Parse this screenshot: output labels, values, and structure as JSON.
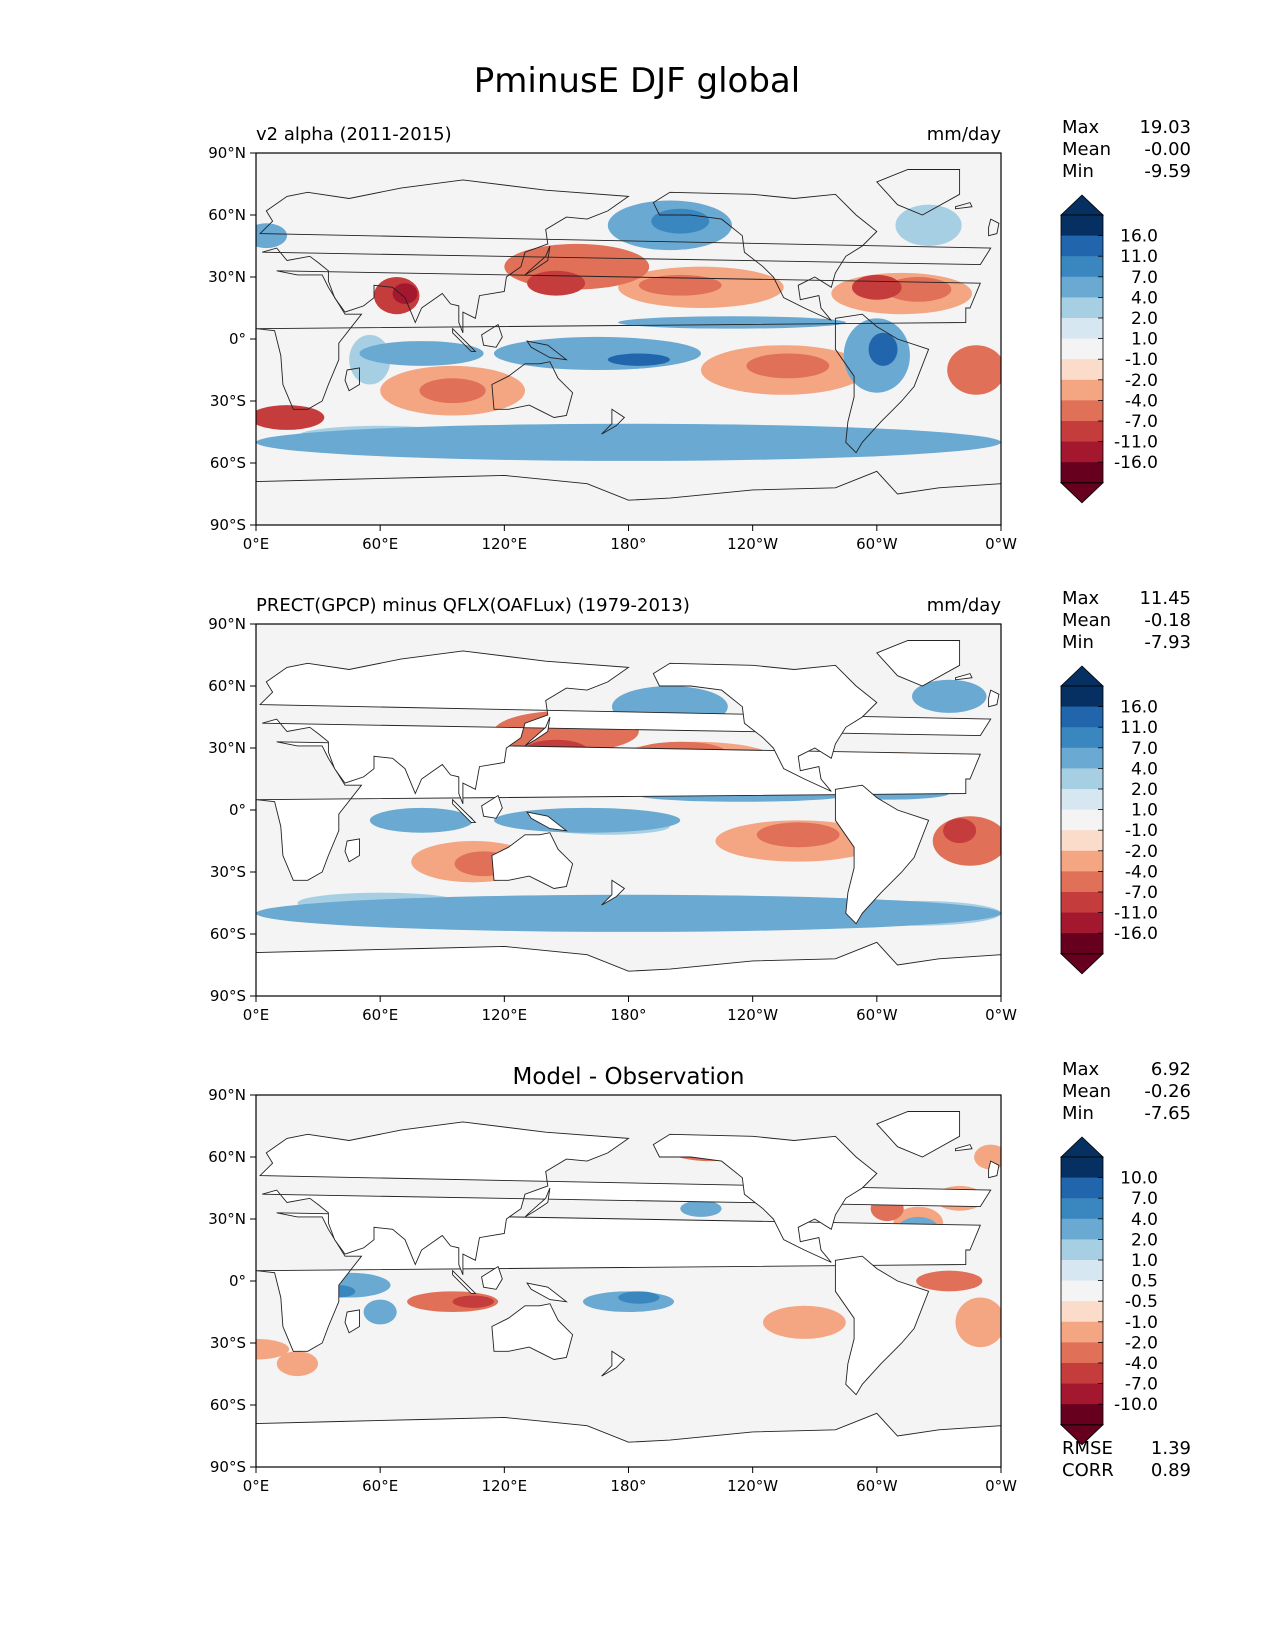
{
  "figure": {
    "title": "PminusE DJF global"
  },
  "longitude_ticks": [
    "0°E",
    "60°E",
    "120°E",
    "180°",
    "120°W",
    "60°W",
    "0°W"
  ],
  "latitude_ticks": [
    "90°N",
    "60°N",
    "30°N",
    "0°",
    "30°S",
    "60°S",
    "90°S"
  ],
  "panels": [
    {
      "left_title": "v2 alpha (2011-2015)",
      "center_title": "",
      "units": "mm/day",
      "stats": [
        {
          "label": "Max",
          "value": "19.03"
        },
        {
          "label": "Mean",
          "value": "-0.00"
        },
        {
          "label": "Min",
          "value": "-9.59"
        }
      ],
      "colorbar_levels": [
        "16.0",
        "11.0",
        "7.0",
        "4.0",
        "2.0",
        "1.0",
        "-1.0",
        "-2.0",
        "-4.0",
        "-7.0",
        "-11.0",
        "-16.0"
      ],
      "footer_stats": []
    },
    {
      "left_title": "PRECT(GPCP) minus QFLX(OAFLux) (1979-2013)",
      "center_title": "",
      "units": "mm/day",
      "stats": [
        {
          "label": "Max",
          "value": "11.45"
        },
        {
          "label": "Mean",
          "value": "-0.18"
        },
        {
          "label": "Min",
          "value": "-7.93"
        }
      ],
      "colorbar_levels": [
        "16.0",
        "11.0",
        "7.0",
        "4.0",
        "2.0",
        "1.0",
        "-1.0",
        "-2.0",
        "-4.0",
        "-7.0",
        "-11.0",
        "-16.0"
      ],
      "footer_stats": []
    },
    {
      "left_title": "",
      "center_title": "Model - Observation",
      "units": "",
      "stats": [
        {
          "label": "Max",
          "value": "6.92"
        },
        {
          "label": "Mean",
          "value": "-0.26"
        },
        {
          "label": "Min",
          "value": "-7.65"
        }
      ],
      "colorbar_levels": [
        "10.0",
        "7.0",
        "4.0",
        "2.0",
        "1.0",
        "0.5",
        "-0.5",
        "-1.0",
        "-2.0",
        "-4.0",
        "-7.0",
        "-10.0"
      ],
      "footer_stats": [
        {
          "label": "RMSE",
          "value": "1.39"
        },
        {
          "label": "CORR",
          "value": "0.89"
        }
      ]
    }
  ],
  "colors": {
    "colorbar": [
      "#053061",
      "#2166ac",
      "#3a87c0",
      "#6aa9d1",
      "#a7cfe4",
      "#d6e7f1",
      "#f4f4f4",
      "#fbdbc9",
      "#f4a582",
      "#e07058",
      "#c43c3c",
      "#a3172f",
      "#67001f"
    ],
    "land": "#ffffff",
    "ocean_neutral": "#f4f4f4",
    "coast": "#222222"
  }
}
